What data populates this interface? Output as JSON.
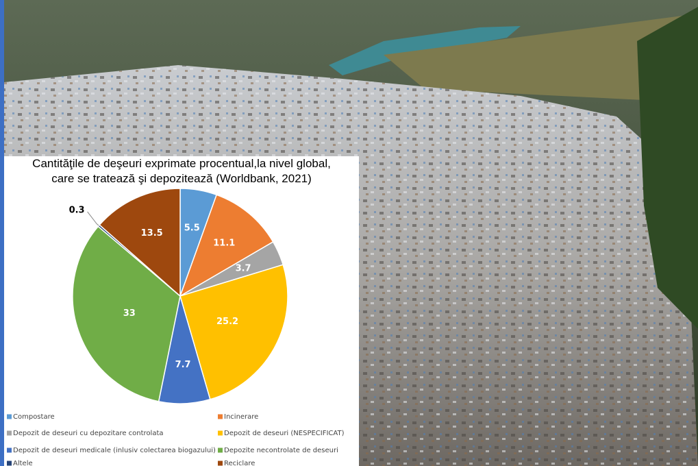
{
  "chart_data": {
    "type": "pie",
    "title": [
      "Cantităţile de deşeuri exprimate procentual,la nivel global,",
      "care se tratează şi depozitează (Worldbank, 2021)"
    ],
    "categories": [
      "Compostare",
      "Incinerare",
      "Depozit de deseuri cu depozitare controlata",
      "Depozit de deseuri (NESPECIFICAT)",
      "Depozit de deseuri medicale (inlusiv colectarea biogazului)",
      "Depozite necontrolate de deseuri",
      "Altele",
      "Reciclare"
    ],
    "values": [
      5.5,
      11.1,
      3.7,
      25.2,
      7.7,
      33,
      0.3,
      13.5
    ],
    "colors": [
      "#5b9bd5",
      "#ed7d31",
      "#a5a5a5",
      "#ffc000",
      "#4472c4",
      "#70ad47",
      "#264478",
      "#9e480e"
    ],
    "legend": "bottom"
  }
}
